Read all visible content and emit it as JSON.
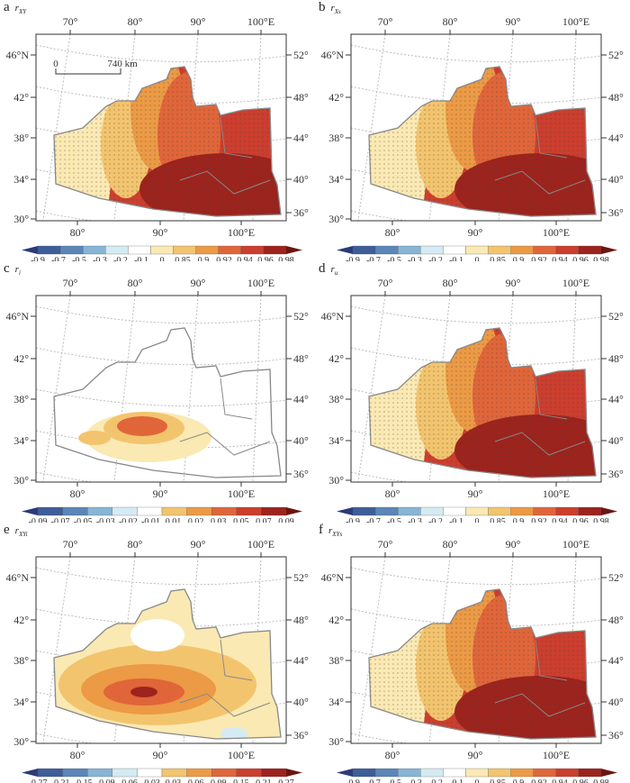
{
  "figure": {
    "lon_top": [
      "70°",
      "80°",
      "90°",
      "100°E"
    ],
    "lon_bottom": [
      "80°",
      "90°",
      "100°E"
    ],
    "lat_left": [
      "46°N",
      "42°",
      "38°",
      "34°",
      "30°"
    ],
    "lat_right": [
      "52°",
      "48°",
      "44°",
      "40°",
      "36°"
    ],
    "scale_bar": {
      "start": "0",
      "end": "740 km"
    },
    "colorbar_colors": [
      "#2b3a7a",
      "#3e5e9a",
      "#5a86b8",
      "#86b5d6",
      "#d5ebf3",
      "#ffffff",
      "#fbe9b3",
      "#f3c46e",
      "#ec9a45",
      "#e0663a",
      "#cc3e2e",
      "#9d231d",
      "#6b1510"
    ]
  },
  "panels": [
    {
      "letter": "a",
      "var": "r",
      "sub": "XY",
      "ticks": [
        "-0.9",
        "-0.7",
        "-0.5",
        "-0.3",
        "-0.2",
        "-0.1",
        "0",
        "0.85",
        "0.9",
        "0.92",
        "0.94",
        "0.96",
        "0.98"
      ],
      "pattern": "full"
    },
    {
      "letter": "b",
      "var": "r",
      "sub": "Xs",
      "ticks": [
        "-0.9",
        "-0.7",
        "-0.5",
        "-0.3",
        "-0.2",
        "-0.1",
        "0",
        "0.85",
        "0.9",
        "0.92",
        "0.94",
        "0.96",
        "0.98"
      ],
      "pattern": "full"
    },
    {
      "letter": "c",
      "var": "r",
      "sub": "i",
      "ticks": [
        "-0.09",
        "-0.07",
        "-0.05",
        "-0.03",
        "-0.02",
        "-0.01",
        "0.01",
        "0.02",
        "0.03",
        "0.05",
        "0.07",
        "0.09"
      ],
      "pattern": "small"
    },
    {
      "letter": "d",
      "var": "r",
      "sub": "u",
      "ticks": [
        "-0.9",
        "-0.7",
        "-0.5",
        "-0.3",
        "-0.2",
        "-0.1",
        "0",
        "0.85",
        "0.9",
        "0.92",
        "0.94",
        "0.96",
        "0.98"
      ],
      "pattern": "full"
    },
    {
      "letter": "e",
      "var": "r",
      "sub": "XYi",
      "ticks": [
        "-0.27",
        "-0.21",
        "-0.15",
        "-0.09",
        "-0.06",
        "-0.03",
        "0.03",
        "0.06",
        "0.09",
        "0.15",
        "0.21",
        "0.27"
      ],
      "pattern": "medium"
    },
    {
      "letter": "f",
      "var": "r",
      "sub": "XYs",
      "ticks": [
        "-0.9",
        "-0.7",
        "-0.5",
        "-0.3",
        "-0.2",
        "-0.1",
        "0",
        "0.85",
        "0.9",
        "0.92",
        "0.94",
        "0.96",
        "0.98"
      ],
      "pattern": "full"
    }
  ]
}
